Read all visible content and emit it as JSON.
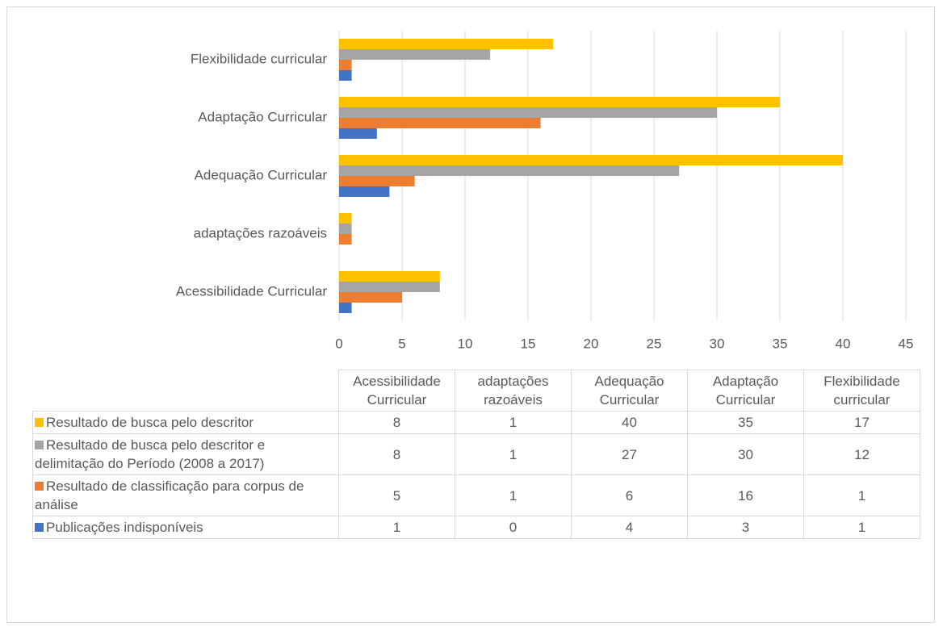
{
  "chart_data": {
    "type": "bar",
    "orientation": "horizontal",
    "categories": [
      "Acessibilidade Curricular",
      "adaptações razoáveis",
      "Adequação Curricular",
      "Adaptação Curricular",
      "Flexibilidade curricular"
    ],
    "series": [
      {
        "name": "Resultado de busca pelo descritor",
        "color": "#FFC000",
        "values": [
          8,
          1,
          40,
          35,
          17
        ]
      },
      {
        "name": "Resultado de busca pelo descritor e delimitação do Período (2008 a 2017)",
        "color": "#A5A5A5",
        "values": [
          8,
          1,
          27,
          30,
          12
        ]
      },
      {
        "name": "Resultado de classificação para corpus de análise",
        "color": "#ED7D31",
        "values": [
          5,
          1,
          6,
          16,
          1
        ]
      },
      {
        "name": "Publicações indisponíveis",
        "color": "#4472C4",
        "values": [
          1,
          0,
          4,
          3,
          1
        ]
      }
    ],
    "xlim": [
      0,
      45
    ],
    "xticks": [
      0,
      5,
      10,
      15,
      20,
      25,
      30,
      35,
      40,
      45
    ],
    "grid": true
  }
}
